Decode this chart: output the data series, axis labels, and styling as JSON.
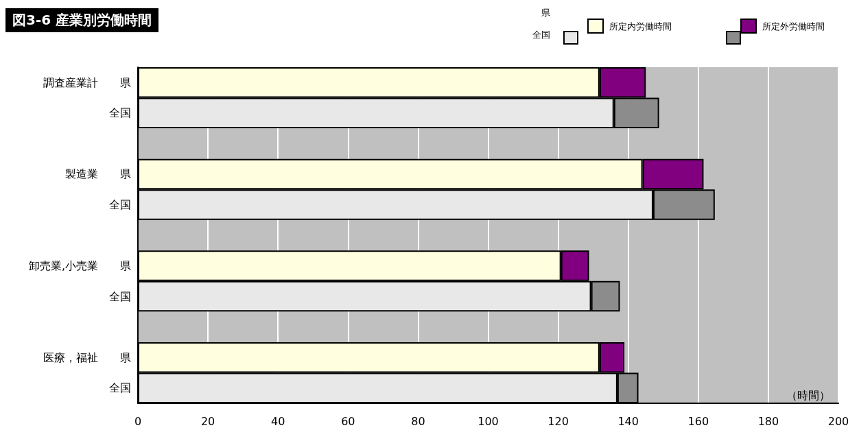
{
  "chart_data": {
    "type": "bar",
    "orientation": "horizontal",
    "stacked": true,
    "title": "図3-6  産業別労働時間",
    "xlabel": "（時間）",
    "categories": [
      "調査産業計　　県",
      "全国",
      null,
      "製造業　　県",
      "全国",
      null,
      "卸売業,小売業　　県",
      "全国",
      null,
      "医療，福祉　　県",
      "全国"
    ],
    "series": [
      {
        "name": "所定内労働時間",
        "color": "#ffffe0",
        "colors": [
          "#ffffe0",
          "#e8e8e8",
          null,
          "#ffffe0",
          "#e8e8e8",
          null,
          "#ffffe0",
          "#e8e8e8",
          null,
          "#ffffe0",
          "#e8e8e8"
        ],
        "values": [
          131.8,
          135.9,
          null,
          144.1,
          147.1,
          null,
          120.8,
          129.4,
          null,
          131.8,
          136.9
        ]
      },
      {
        "name": "所定外労働時間",
        "color": "#800080",
        "colors": [
          "#800080",
          "#8c8c8c",
          null,
          "#800080",
          "#8c8c8c",
          null,
          "#800080",
          "#8c8c8c",
          null,
          "#800080",
          "#8c8c8c"
        ],
        "values": [
          13.2,
          12.9,
          null,
          17.4,
          17.6,
          null,
          8.0,
          8.2,
          null,
          7.1,
          6.0
        ]
      }
    ],
    "annotations": [
      "県",
      "全国"
    ],
    "xlim": [
      0,
      200
    ],
    "xticks": [
      0,
      20,
      40,
      60,
      80,
      100,
      120,
      140,
      160,
      180,
      200
    ],
    "grid": "x",
    "legend": "top right"
  }
}
